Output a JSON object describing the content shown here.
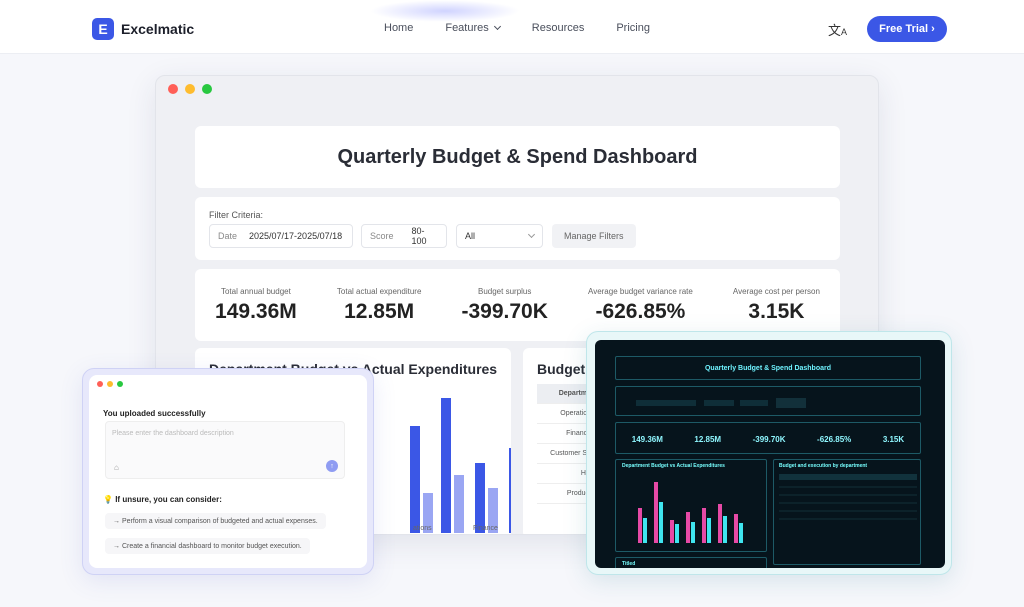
{
  "nav": {
    "logo_letter": "E",
    "logo_text": "Excelmatic",
    "links": [
      "Home",
      "Features",
      "Resources",
      "Pricing"
    ],
    "lang_icon": "translate-icon",
    "cta": "Free Trial ›"
  },
  "dashboard": {
    "title": "Quarterly Budget & Spend Dashboard",
    "filter_label": "Filter Criteria:",
    "date_key": "Date",
    "date_value": "2025/07/17-2025/07/18",
    "score_key": "Score",
    "score_value": "80-100",
    "select_value": "All",
    "manage_filters": "Manage Filters",
    "kpis": [
      {
        "label": "Total annual budget",
        "value": "149.36M"
      },
      {
        "label": "Total actual expenditure",
        "value": "12.85M"
      },
      {
        "label": "Budget surplus",
        "value": "-399.70K"
      },
      {
        "label": "Average budget variance rate",
        "value": "-626.85%"
      },
      {
        "label": "Average cost per person",
        "value": "3.15K"
      }
    ],
    "chart_title": "Department Budget vs Actual Expenditures",
    "chart_categories": [
      "ations",
      "Finance"
    ],
    "table_title": "Budget a",
    "table_rows": [
      "Departme",
      "Operation",
      "Finance",
      "Customer Su",
      "HR",
      "Product"
    ]
  },
  "chat": {
    "heading": "You uploaded successfully",
    "placeholder": "Please enter the dashboard description",
    "hint": "If unsure, you can consider:",
    "suggestions": [
      "→  Perform a visual comparison of budgeted and actual expenses.",
      "→  Create a financial dashboard to monitor budget execution."
    ]
  },
  "dark": {
    "title": "Quarterly Budget & Spend Dashboard",
    "kpis": [
      "149.36M",
      "12.85M",
      "-399.70K",
      "-626.85%",
      "3.15K"
    ],
    "chart_title": "Department Budget vs Actual Expenditures",
    "table_title": "Budget and execution by department",
    "titled": "Titled"
  },
  "colors": {
    "accent": "#3b57e6",
    "bar_dark": "#3b57e6",
    "bar_light": "#9aa6f3",
    "dot_red": "#ff5f57",
    "dot_yellow": "#febc2e",
    "dot_green": "#28c840"
  }
}
